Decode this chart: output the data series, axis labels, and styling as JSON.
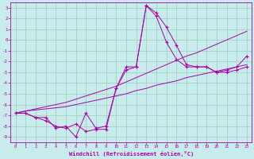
{
  "xlabel": "Windchill (Refroidissement éolien,°C)",
  "bg_color": "#c8ecec",
  "grid_color": "#99ccbb",
  "line_color": "#aa00aa",
  "xlim": [
    -0.5,
    23.5
  ],
  "ylim": [
    -9.5,
    3.5
  ],
  "xticks": [
    0,
    1,
    2,
    3,
    4,
    5,
    6,
    7,
    8,
    9,
    10,
    11,
    12,
    13,
    14,
    15,
    16,
    17,
    18,
    19,
    20,
    21,
    22,
    23
  ],
  "yticks": [
    -9,
    -8,
    -7,
    -6,
    -5,
    -4,
    -3,
    -2,
    -1,
    0,
    1,
    2,
    3
  ],
  "line1_x": [
    0,
    1,
    2,
    3,
    4,
    5,
    6,
    7,
    8,
    9,
    10,
    11,
    12,
    13,
    14,
    15,
    16,
    17,
    18,
    19,
    20,
    21,
    22,
    23
  ],
  "line1_y": [
    -6.8,
    -6.6,
    -6.5,
    -6.4,
    -6.3,
    -6.2,
    -6.0,
    -5.8,
    -5.6,
    -5.4,
    -5.2,
    -5.0,
    -4.7,
    -4.5,
    -4.2,
    -4.0,
    -3.8,
    -3.5,
    -3.3,
    -3.1,
    -2.9,
    -2.7,
    -2.5,
    -2.3
  ],
  "line2_x": [
    0,
    1,
    2,
    3,
    4,
    5,
    6,
    7,
    8,
    9,
    10,
    11,
    12,
    13,
    14,
    15,
    16,
    17,
    18,
    19,
    20,
    21,
    22,
    23
  ],
  "line2_y": [
    -6.8,
    -6.6,
    -6.4,
    -6.2,
    -6.0,
    -5.8,
    -5.5,
    -5.2,
    -4.9,
    -4.6,
    -4.3,
    -3.9,
    -3.5,
    -3.1,
    -2.7,
    -2.3,
    -1.9,
    -1.5,
    -1.2,
    -0.8,
    -0.4,
    0.0,
    0.4,
    0.8
  ],
  "line3_x": [
    0,
    1,
    2,
    3,
    4,
    5,
    6,
    7,
    8,
    9,
    10,
    11,
    12,
    13,
    14,
    15,
    16,
    17,
    18,
    19,
    20,
    21,
    22,
    23
  ],
  "line3_y": [
    -6.8,
    -6.8,
    -7.2,
    -7.2,
    -8.2,
    -8.0,
    -9.0,
    -6.8,
    -8.2,
    -8.0,
    -4.5,
    -2.5,
    -2.5,
    3.2,
    2.5,
    1.2,
    -0.5,
    -2.3,
    -2.5,
    -2.5,
    -3.0,
    -3.0,
    -2.8,
    -2.5
  ],
  "line4_x": [
    0,
    1,
    2,
    3,
    4,
    5,
    6,
    7,
    8,
    9,
    10,
    11,
    12,
    13,
    14,
    15,
    16,
    17,
    18,
    19,
    20,
    21,
    22,
    23
  ],
  "line4_y": [
    -6.8,
    -6.8,
    -7.2,
    -7.5,
    -8.0,
    -8.2,
    -7.8,
    -8.5,
    -8.3,
    -8.3,
    -4.5,
    -2.8,
    -2.5,
    3.2,
    2.2,
    -0.2,
    -1.8,
    -2.5,
    -2.5,
    -2.5,
    -3.0,
    -2.8,
    -2.5,
    -1.5
  ]
}
